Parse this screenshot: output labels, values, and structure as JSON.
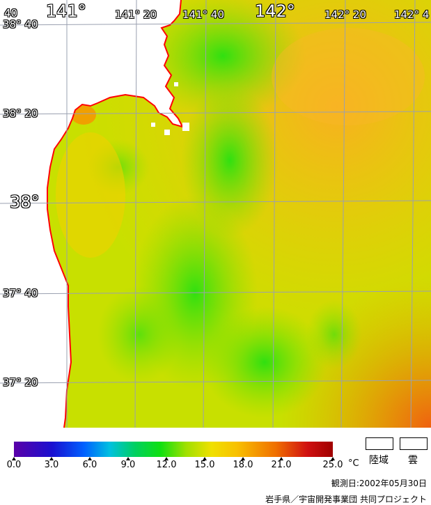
{
  "map": {
    "lat_labels": [
      "38° 40",
      "38° 20",
      "38°",
      "37° 40",
      "37° 20"
    ],
    "lon_labels": [
      "40",
      "141°",
      "141° 20",
      "141° 40",
      "142°",
      "142° 20",
      "142° 4"
    ],
    "colors": {
      "land": "#ffffff",
      "coast": "#ff0000",
      "grid": "#9aa0b0"
    }
  },
  "legend": {
    "ticks": [
      "0.0",
      "3.0",
      "6.0",
      "9.0",
      "12.0",
      "15.0",
      "18.0",
      "21.0",
      "25.0"
    ],
    "unit": "°C",
    "land_label": "陸域",
    "cloud_label": "雲"
  },
  "footer": {
    "date": "観測日:2002年05月30日",
    "credit": "岩手県／宇宙開発事業団 共同プロジェクト"
  }
}
